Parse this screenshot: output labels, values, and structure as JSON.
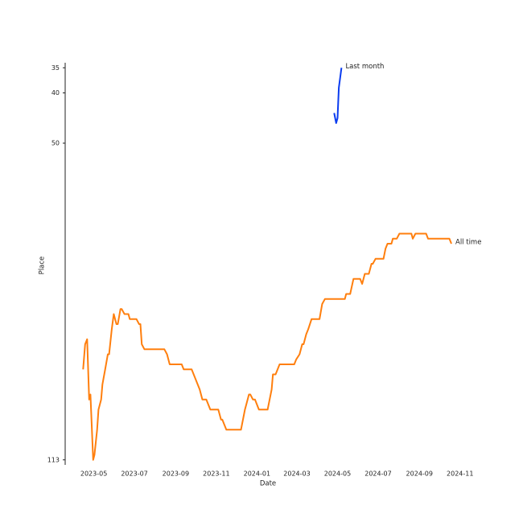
{
  "chart_data": {
    "type": "line",
    "x_label": "Date",
    "y_label": "Place",
    "xlim": [
      "2023-03-19",
      "2024-11-17"
    ],
    "xticks": [
      "2023-05",
      "2023-07",
      "2023-09",
      "2023-11",
      "2024-01",
      "2024-03",
      "2024-05",
      "2024-07",
      "2024-09",
      "2024-11"
    ],
    "ylim": [
      34,
      114
    ],
    "y_inverted": true,
    "yticks": [
      35,
      40,
      50,
      113
    ],
    "series": [
      {
        "name": "All time",
        "color": "#ff7f0e",
        "x": [
          "2023-04-15",
          "2023-04-18",
          "2023-04-21",
          "2023-04-24",
          "2023-04-26",
          "2023-04-30",
          "2023-05-02",
          "2023-05-06",
          "2023-05-08",
          "2023-05-12",
          "2023-05-14",
          "2023-05-18",
          "2023-05-22",
          "2023-05-24",
          "2023-05-28",
          "2023-05-31",
          "2023-06-04",
          "2023-06-06",
          "2023-06-10",
          "2023-06-12",
          "2023-06-16",
          "2023-06-22",
          "2023-06-24",
          "2023-07-04",
          "2023-07-08",
          "2023-07-10",
          "2023-07-12",
          "2023-07-16",
          "2023-08-15",
          "2023-08-19",
          "2023-08-23",
          "2023-09-10",
          "2023-09-13",
          "2023-09-25",
          "2023-10-07",
          "2023-10-11",
          "2023-10-17",
          "2023-10-23",
          "2023-11-04",
          "2023-11-08",
          "2023-11-10",
          "2023-11-16",
          "2023-12-08",
          "2023-12-14",
          "2023-12-16",
          "2023-12-20",
          "2023-12-22",
          "2023-12-26",
          "2023-12-29",
          "2024-01-04",
          "2024-01-17",
          "2024-01-23",
          "2024-01-25",
          "2024-01-29",
          "2024-02-04",
          "2024-02-26",
          "2024-02-29",
          "2024-03-05",
          "2024-03-09",
          "2024-03-11",
          "2024-03-15",
          "2024-03-18",
          "2024-03-23",
          "2024-04-04",
          "2024-04-08",
          "2024-04-12",
          "2024-05-12",
          "2024-05-14",
          "2024-05-20",
          "2024-05-25",
          "2024-06-04",
          "2024-06-07",
          "2024-06-11",
          "2024-06-17",
          "2024-06-21",
          "2024-06-23",
          "2024-06-27",
          "2024-07-09",
          "2024-07-12",
          "2024-07-15",
          "2024-07-21",
          "2024-07-23",
          "2024-07-29",
          "2024-08-02",
          "2024-08-20",
          "2024-08-22",
          "2024-08-26",
          "2024-09-11",
          "2024-09-14",
          "2024-10-16",
          "2024-10-19"
        ],
        "values": [
          95,
          90,
          89,
          101,
          100,
          113,
          112,
          107,
          103,
          101,
          98,
          95,
          92,
          92,
          87,
          84,
          86,
          86,
          83,
          83,
          84,
          84,
          85,
          85,
          86,
          86,
          90,
          91,
          91,
          92,
          94,
          94,
          95,
          95,
          99,
          101,
          101,
          103,
          103,
          105,
          105,
          107,
          107,
          103,
          102,
          100,
          100,
          101,
          101,
          103,
          103,
          99,
          96,
          96,
          94,
          94,
          93,
          92,
          90,
          90,
          88,
          87,
          85,
          85,
          82,
          81,
          81,
          80,
          80,
          77,
          77,
          78,
          76,
          76,
          74,
          74,
          73,
          73,
          71,
          70,
          70,
          69,
          69,
          68,
          68,
          69,
          68,
          68,
          69,
          69,
          70
        ]
      },
      {
        "name": "Last month",
        "color": "#0b3cf0",
        "x": [
          "2024-04-26",
          "2024-04-29",
          "2024-05-01",
          "2024-05-03",
          "2024-05-07"
        ],
        "values": [
          44,
          46,
          45,
          39,
          35
        ]
      }
    ]
  }
}
